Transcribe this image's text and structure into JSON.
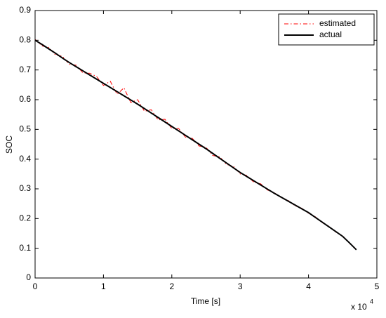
{
  "chart_data": {
    "type": "line",
    "xlabel": "Time [s]",
    "ylabel": "SOC",
    "x_multiplier": "x 10",
    "x_multiplier_exponent": "4",
    "x": [
      0,
      0.1,
      0.2,
      0.3,
      0.4,
      0.5,
      0.6,
      0.7,
      0.8,
      0.9,
      1.0,
      1.1,
      1.2,
      1.3,
      1.4,
      1.5,
      1.6,
      1.7,
      1.8,
      1.9,
      2.0,
      2.1,
      2.2,
      2.3,
      2.4,
      2.5,
      2.6,
      2.7,
      2.8,
      2.9,
      3.0,
      3.1,
      3.2,
      3.3,
      3.4,
      3.5,
      3.6,
      3.7,
      3.8,
      3.9,
      4.0,
      4.1,
      4.2,
      4.3,
      4.4,
      4.5,
      4.6,
      4.7
    ],
    "series": [
      {
        "name": "estimated",
        "color": "#ff0000",
        "style": "dash-dot",
        "width": 1,
        "values": [
          0.803,
          0.781,
          0.776,
          0.75,
          0.746,
          0.719,
          0.716,
          0.69,
          0.689,
          0.678,
          0.648,
          0.662,
          0.618,
          0.64,
          0.59,
          0.6,
          0.561,
          0.566,
          0.532,
          0.534,
          0.503,
          0.503,
          0.474,
          0.47,
          0.444,
          0.44,
          0.412,
          0.408,
          0.382,
          0.376,
          0.35,
          0.345,
          0.322,
          0.317,
          0.296,
          0.287,
          0.27,
          0.262,
          0.243,
          0.235,
          0.218,
          0.206,
          0.186,
          0.174,
          0.154,
          0.142,
          0.116,
          0.097
        ]
      },
      {
        "name": "actual",
        "color": "#000000",
        "style": "solid",
        "width": 2,
        "values": [
          0.8,
          0.786,
          0.771,
          0.756,
          0.74,
          0.725,
          0.711,
          0.697,
          0.683,
          0.669,
          0.655,
          0.641,
          0.627,
          0.613,
          0.599,
          0.585,
          0.57,
          0.555,
          0.54,
          0.525,
          0.51,
          0.495,
          0.48,
          0.465,
          0.45,
          0.435,
          0.419,
          0.403,
          0.387,
          0.371,
          0.355,
          0.341,
          0.327,
          0.313,
          0.299,
          0.285,
          0.272,
          0.259,
          0.246,
          0.233,
          0.22,
          0.204,
          0.188,
          0.172,
          0.156,
          0.14,
          0.118,
          0.095
        ]
      }
    ],
    "xlim": [
      0,
      5
    ],
    "xticks": [
      0,
      1,
      2,
      3,
      4,
      5
    ],
    "ylim": [
      0,
      0.9
    ],
    "yticks": [
      0,
      0.1,
      0.2,
      0.3,
      0.4,
      0.5,
      0.6,
      0.7,
      0.8,
      0.9
    ],
    "grid": false,
    "legend": "upper right"
  }
}
